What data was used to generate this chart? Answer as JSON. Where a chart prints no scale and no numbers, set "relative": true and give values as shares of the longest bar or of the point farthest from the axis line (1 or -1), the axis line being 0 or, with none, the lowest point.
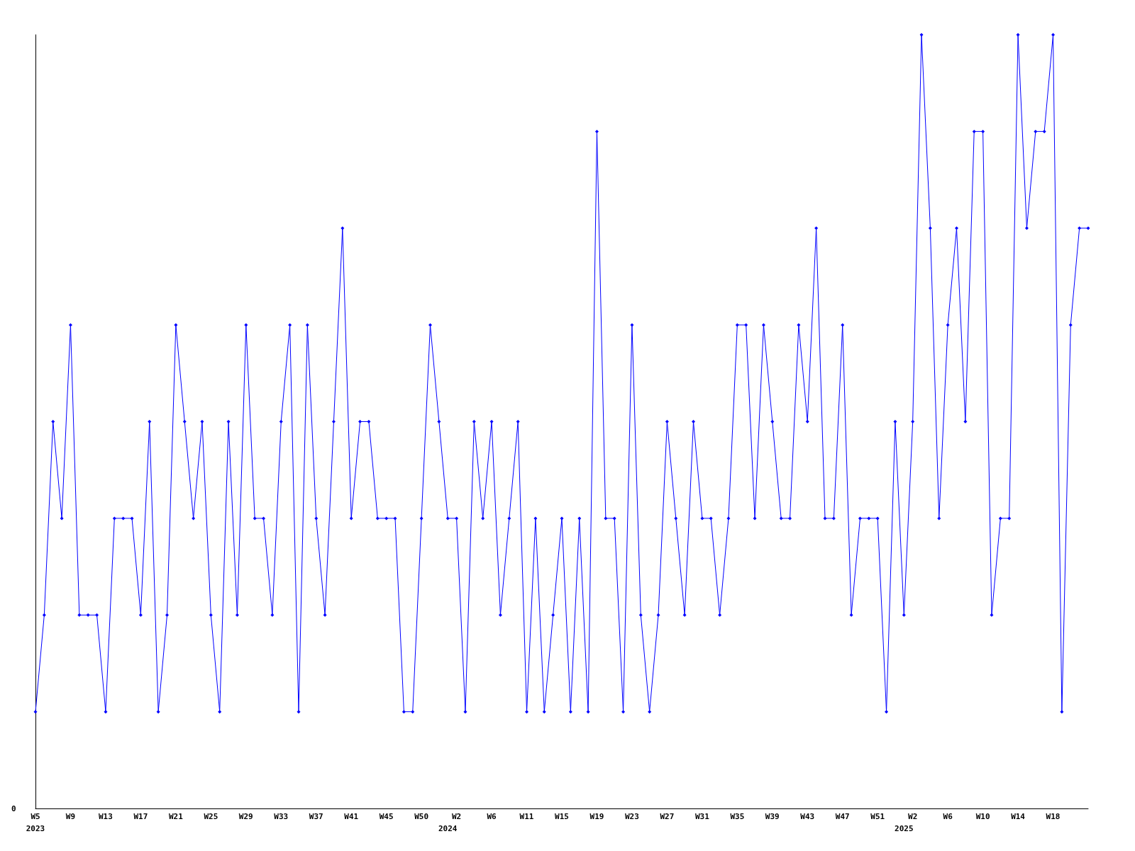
{
  "chart_data": {
    "type": "line",
    "relative": true,
    "annotations": [
      "0"
    ],
    "color": "#0000ff",
    "marker": "diamond",
    "grid": false,
    "line_style": "solid",
    "categories": [
      "W5\n2023",
      null,
      null,
      null,
      "W9",
      null,
      null,
      null,
      "W13",
      null,
      null,
      null,
      "W17",
      null,
      null,
      null,
      "W21",
      null,
      null,
      null,
      "W25",
      null,
      null,
      null,
      "W29",
      null,
      null,
      null,
      "W33",
      null,
      null,
      null,
      "W37",
      null,
      null,
      null,
      "W41",
      null,
      null,
      null,
      "W45",
      null,
      null,
      null,
      "W50",
      null,
      null,
      "\n2024",
      "W2",
      null,
      null,
      null,
      "W6",
      null,
      null,
      null,
      "W11",
      null,
      null,
      null,
      "W15",
      null,
      null,
      null,
      "W19",
      null,
      null,
      null,
      "W23",
      null,
      null,
      null,
      "W27",
      null,
      null,
      null,
      "W31",
      null,
      null,
      null,
      "W35",
      null,
      null,
      null,
      "W39",
      null,
      null,
      null,
      "W43",
      null,
      null,
      null,
      "W47",
      null,
      null,
      null,
      "W51",
      null,
      null,
      "\n2025",
      "W2",
      null,
      null,
      null,
      "W6",
      null,
      null,
      null,
      "W10",
      null,
      null,
      null,
      "W14",
      null,
      null,
      null,
      "W18",
      null,
      null,
      null,
      null
    ],
    "values": [
      0.125,
      0.25,
      0.5,
      0.375,
      0.625,
      0.25,
      0.25,
      0.25,
      0.125,
      0.375,
      0.375,
      0.375,
      0.25,
      0.5,
      0.125,
      0.25,
      0.625,
      0.5,
      0.375,
      0.5,
      0.25,
      0.125,
      0.5,
      0.25,
      0.625,
      0.375,
      0.375,
      0.25,
      0.5,
      0.625,
      0.125,
      0.625,
      0.375,
      0.25,
      0.5,
      0.75,
      0.375,
      0.5,
      0.5,
      0.375,
      0.375,
      0.375,
      0.125,
      0.125,
      0.375,
      0.625,
      0.5,
      0.375,
      0.375,
      0.125,
      0.5,
      0.375,
      0.5,
      0.25,
      0.375,
      0.5,
      0.125,
      0.375,
      0.125,
      0.25,
      0.375,
      0.125,
      0.375,
      0.125,
      0.875,
      0.375,
      0.375,
      0.125,
      0.625,
      0.25,
      0.125,
      0.25,
      0.5,
      0.375,
      0.25,
      0.5,
      0.375,
      0.375,
      0.25,
      0.375,
      0.625,
      0.625,
      0.375,
      0.625,
      0.5,
      0.375,
      0.375,
      0.625,
      0.5,
      0.75,
      0.375,
      0.375,
      0.625,
      0.25,
      0.375,
      0.375,
      0.375,
      0.125,
      0.5,
      0.25,
      0.5,
      1,
      0.75,
      0.375,
      0.625,
      0.75,
      0.5,
      0.875,
      0.875,
      0.25,
      0.375,
      0.375,
      1,
      0.75,
      0.875,
      0.875,
      1,
      0.125,
      0.625,
      0.75,
      0.75
    ]
  }
}
